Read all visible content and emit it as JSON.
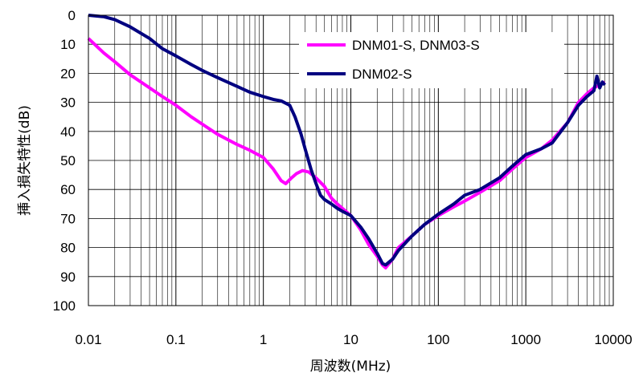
{
  "chart_data": {
    "type": "line",
    "xlabel": "周波数(MHz)",
    "ylabel": "挿入損失特性(dB)",
    "x_scale": "log",
    "xlim": [
      0.01,
      10000
    ],
    "ylim": [
      0,
      100
    ],
    "y_inverted": true,
    "grid": "on (log minor vertical, major horizontal)",
    "legend_position": "top-right",
    "x_ticks": [
      "0.01",
      "0.1",
      "1",
      "10",
      "100",
      "1000",
      "10000"
    ],
    "y_ticks": [
      "0",
      "10",
      "20",
      "30",
      "40",
      "50",
      "60",
      "70",
      "80",
      "90",
      "100"
    ],
    "series": [
      {
        "name": "DNM01-S, DNM03-S",
        "color": "#ff00ff",
        "points": [
          [
            0.01,
            8
          ],
          [
            0.015,
            13
          ],
          [
            0.02,
            16
          ],
          [
            0.03,
            20.5
          ],
          [
            0.05,
            25
          ],
          [
            0.07,
            28
          ],
          [
            0.1,
            31
          ],
          [
            0.15,
            35
          ],
          [
            0.2,
            37.5
          ],
          [
            0.3,
            41
          ],
          [
            0.5,
            44.5
          ],
          [
            0.7,
            46.5
          ],
          [
            1,
            49
          ],
          [
            1.3,
            53
          ],
          [
            1.6,
            57
          ],
          [
            1.8,
            58
          ],
          [
            2.1,
            56
          ],
          [
            2.4,
            54.5
          ],
          [
            2.8,
            53.5
          ],
          [
            3.3,
            54
          ],
          [
            4,
            56
          ],
          [
            5,
            59
          ],
          [
            6,
            63
          ],
          [
            7,
            65
          ],
          [
            8,
            66.5
          ],
          [
            10,
            69
          ],
          [
            13,
            74
          ],
          [
            16,
            79
          ],
          [
            20,
            83
          ],
          [
            23,
            86
          ],
          [
            25,
            87
          ],
          [
            30,
            84
          ],
          [
            35,
            80
          ],
          [
            50,
            76
          ],
          [
            70,
            72
          ],
          [
            100,
            69
          ],
          [
            150,
            66
          ],
          [
            200,
            64
          ],
          [
            300,
            61
          ],
          [
            500,
            57
          ],
          [
            700,
            53
          ],
          [
            1000,
            49
          ],
          [
            1500,
            46
          ],
          [
            2000,
            43
          ],
          [
            3000,
            37
          ],
          [
            4000,
            30
          ],
          [
            5000,
            27
          ],
          [
            6000,
            25
          ],
          [
            7000,
            24
          ],
          [
            8000,
            23
          ]
        ]
      },
      {
        "name": "DNM02-S",
        "color": "#000080",
        "points": [
          [
            0.01,
            0
          ],
          [
            0.015,
            0.5
          ],
          [
            0.02,
            1.5
          ],
          [
            0.03,
            4
          ],
          [
            0.05,
            8
          ],
          [
            0.07,
            11.5
          ],
          [
            0.1,
            14
          ],
          [
            0.15,
            17
          ],
          [
            0.2,
            19
          ],
          [
            0.3,
            21.5
          ],
          [
            0.5,
            24.5
          ],
          [
            0.7,
            26.5
          ],
          [
            1,
            28
          ],
          [
            1.3,
            29
          ],
          [
            1.6,
            29.5
          ],
          [
            2,
            31
          ],
          [
            2.3,
            35
          ],
          [
            2.7,
            41
          ],
          [
            3,
            46
          ],
          [
            3.5,
            53
          ],
          [
            4,
            58
          ],
          [
            4.5,
            62
          ],
          [
            5,
            63.5
          ],
          [
            6,
            65
          ],
          [
            7,
            66.5
          ],
          [
            8,
            67.5
          ],
          [
            10,
            69
          ],
          [
            13,
            73
          ],
          [
            16,
            77
          ],
          [
            20,
            82
          ],
          [
            23,
            85.5
          ],
          [
            25,
            86
          ],
          [
            30,
            84
          ],
          [
            35,
            81
          ],
          [
            50,
            76
          ],
          [
            70,
            72
          ],
          [
            100,
            68.5
          ],
          [
            150,
            65
          ],
          [
            200,
            62
          ],
          [
            300,
            60
          ],
          [
            500,
            56
          ],
          [
            700,
            52
          ],
          [
            1000,
            48
          ],
          [
            1500,
            46
          ],
          [
            2000,
            44
          ],
          [
            3000,
            37
          ],
          [
            4000,
            31
          ],
          [
            5000,
            28
          ],
          [
            6000,
            26
          ],
          [
            6500,
            21
          ],
          [
            7000,
            25
          ],
          [
            7500,
            23
          ],
          [
            8000,
            24
          ]
        ]
      }
    ]
  }
}
